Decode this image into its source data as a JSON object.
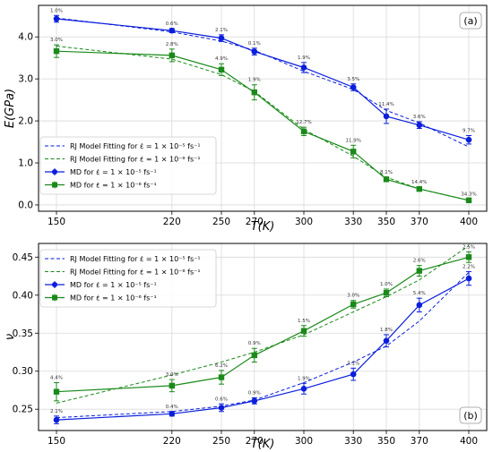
{
  "figure_label": "",
  "chart_data": [
    {
      "panel_label": "(a)",
      "type": "line",
      "ylabel": "E(GPa)",
      "xlabel": "T(K)",
      "x": [
        150,
        220,
        250,
        270,
        300,
        330,
        350,
        370,
        400
      ],
      "x_ticks": [
        "150",
        "220",
        "250",
        "270",
        "300",
        "330",
        "350",
        "370",
        "400"
      ],
      "y_ticks": [
        "0.0",
        "1.0",
        "2.0",
        "3.0",
        "4.0"
      ],
      "ylim": [
        -0.15,
        4.75
      ],
      "grid": true,
      "legend_position": "lower-left",
      "series": [
        {
          "name": "MD for ε̇ = 1 × 10⁻⁵ fs⁻¹",
          "kind": "md",
          "color": "#0a1edb",
          "marker": "circle",
          "values": [
            4.43,
            4.15,
            3.97,
            3.65,
            3.27,
            2.8,
            2.11,
            1.9,
            1.55
          ],
          "err": [
            0.08,
            0.05,
            0.08,
            0.08,
            0.12,
            0.08,
            0.17,
            0.08,
            0.1
          ],
          "point_labels": [
            "1.0%",
            "0.6%",
            "2.1%",
            "0.1%",
            "1.9%",
            "3.5%",
            "11.4%",
            "3.6%",
            "9.7%"
          ]
        },
        {
          "name": "MD for ε̇ = 1 × 10⁻⁶ fs⁻¹",
          "kind": "md",
          "color": "#1a8a1a",
          "marker": "square",
          "values": [
            3.66,
            3.56,
            3.22,
            2.68,
            1.75,
            1.27,
            0.61,
            0.38,
            0.11
          ],
          "err": [
            0.15,
            0.15,
            0.14,
            0.18,
            0.1,
            0.15,
            0.05,
            0.04,
            0.03
          ],
          "point_labels": [
            "3.0%",
            "2.8%",
            "4.9%",
            "1.9%",
            "12.7%",
            "11.9%",
            "8.1%",
            "14.4%",
            "34.3%"
          ]
        },
        {
          "name": "RJ Model Fitting for ε̇ = 1 × 10⁻⁵ fs⁻¹",
          "kind": "fit",
          "color": "#0a1edb",
          "values": [
            4.45,
            4.12,
            3.9,
            3.68,
            3.18,
            2.75,
            2.25,
            1.95,
            1.38
          ]
        },
        {
          "name": "RJ Model Fitting for ε̇ = 1 × 10⁻⁶ fs⁻¹",
          "kind": "fit",
          "color": "#1a8a1a",
          "values": [
            3.78,
            3.47,
            3.1,
            2.7,
            1.8,
            1.16,
            0.66,
            0.38,
            0.11
          ]
        }
      ]
    },
    {
      "panel_label": "(b)",
      "type": "line",
      "ylabel": "ν",
      "xlabel": "T(K)",
      "x": [
        150,
        220,
        250,
        270,
        300,
        330,
        350,
        370,
        400
      ],
      "x_ticks": [
        "150",
        "220",
        "250",
        "270",
        "300",
        "330",
        "350",
        "370",
        "400"
      ],
      "y_ticks": [
        "0.25",
        "0.30",
        "0.35",
        "0.40",
        "0.45"
      ],
      "ylim": [
        0.222,
        0.468
      ],
      "grid": true,
      "legend_position": "top-left",
      "series": [
        {
          "name": "MD for ε̇ = 1 × 10⁻⁵ fs⁻¹",
          "kind": "md",
          "color": "#0a1edb",
          "marker": "circle",
          "values": [
            0.236,
            0.244,
            0.252,
            0.261,
            0.277,
            0.296,
            0.34,
            0.387,
            0.422
          ],
          "err": [
            0.005,
            0.003,
            0.005,
            0.004,
            0.007,
            0.008,
            0.008,
            0.009,
            0.009
          ],
          "point_labels": [
            "2.1%",
            "0.4%",
            "0.6%",
            "0.9%",
            "1.9%",
            "3.1%",
            "1.8%",
            "5.4%",
            "2.2%"
          ]
        },
        {
          "name": "MD for ε̇ = 1 × 10⁻⁶ fs⁻¹",
          "kind": "md",
          "color": "#1a8a1a",
          "marker": "square",
          "values": [
            0.273,
            0.281,
            0.292,
            0.321,
            0.353,
            0.388,
            0.403,
            0.432,
            0.45
          ],
          "err": [
            0.012,
            0.008,
            0.009,
            0.009,
            0.007,
            0.005,
            0.005,
            0.007,
            0.007
          ],
          "point_labels": [
            "4.4%",
            "3.0%",
            "6.2%",
            "0.9%",
            "1.5%",
            "3.0%",
            "1.0%",
            "2.6%",
            "2.5%"
          ]
        },
        {
          "name": "RJ Model Fitting for ε̇ = 1 × 10⁻⁵ fs⁻¹",
          "kind": "fit",
          "color": "#0a1edb",
          "values": [
            0.239,
            0.247,
            0.254,
            0.262,
            0.285,
            0.312,
            0.333,
            0.366,
            0.43
          ]
        },
        {
          "name": "RJ Model Fitting for ε̇ = 1 × 10⁻⁶ fs⁻¹",
          "kind": "fit",
          "color": "#1a8a1a",
          "values": [
            0.258,
            0.295,
            0.312,
            0.325,
            0.348,
            0.378,
            0.398,
            0.42,
            0.465
          ]
        }
      ]
    }
  ]
}
